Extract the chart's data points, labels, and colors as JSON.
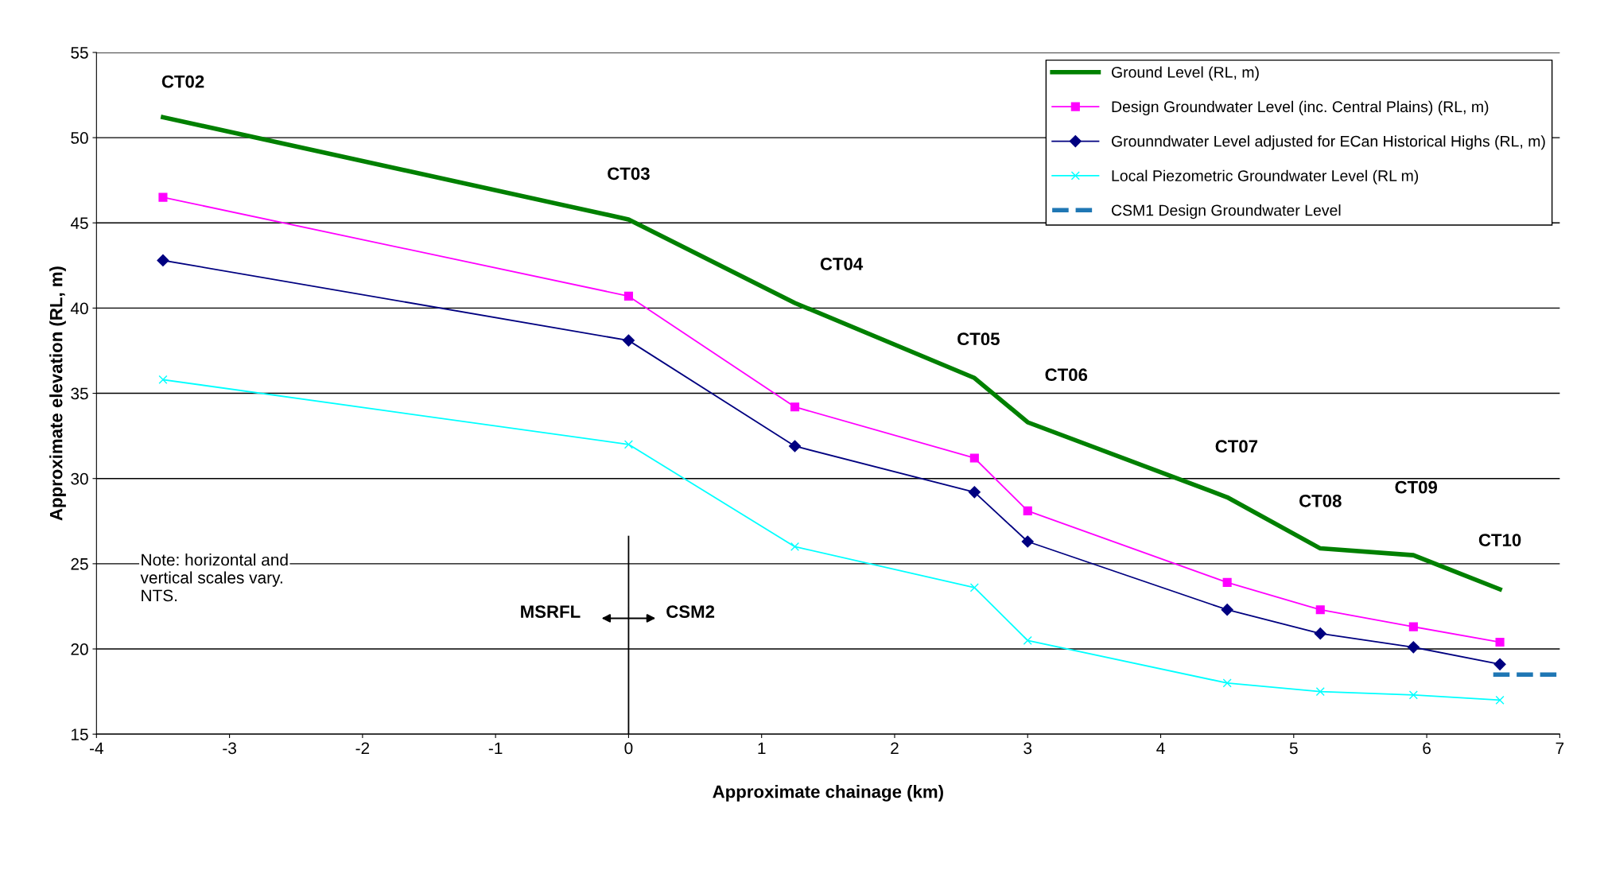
{
  "chart_data": {
    "type": "line",
    "xlabel": "Approximate chainage (km)",
    "ylabel": "Approximate elevation (RL, m)",
    "xlim": [
      -4,
      7
    ],
    "xticks": [
      -4,
      -3,
      -2,
      -1,
      0,
      1,
      2,
      3,
      4,
      5,
      6,
      7
    ],
    "ylim": [
      15,
      55
    ],
    "yticks": [
      15,
      20,
      25,
      30,
      35,
      40,
      45,
      50,
      55
    ],
    "grid": "y",
    "legend": "top right",
    "series": [
      {
        "name": "Ground Level (RL, m)",
        "color": "#008000",
        "marker": "none",
        "line_style": "solid",
        "x": [
          -3.5,
          0,
          1.25,
          2.6,
          3,
          4.5,
          5.2,
          5.9,
          6.55
        ],
        "values": [
          51.2,
          45.2,
          40.3,
          35.9,
          33.3,
          28.9,
          25.9,
          25.5,
          23.5
        ]
      },
      {
        "name": "Design Groundwater Level (inc. Central Plains) (RL, m)",
        "color": "#ff00ff",
        "marker": "square",
        "line_style": "solid",
        "x": [
          -3.5,
          0,
          1.25,
          2.6,
          3,
          4.5,
          5.2,
          5.9,
          6.55
        ],
        "values": [
          46.5,
          40.7,
          34.2,
          31.2,
          28.1,
          23.9,
          22.3,
          21.3,
          20.4
        ]
      },
      {
        "name": "Grounndwater Level adjusted for ECan Historical Highs (RL, m)",
        "color": "#000080",
        "marker": "diamond",
        "line_style": "solid",
        "x": [
          -3.5,
          0,
          1.25,
          2.6,
          3,
          4.5,
          5.2,
          5.9,
          6.55
        ],
        "values": [
          42.8,
          38.1,
          31.9,
          29.2,
          26.3,
          22.3,
          20.9,
          20.1,
          19.1
        ]
      },
      {
        "name": "Local Piezometric Groundwater Level (RL m)",
        "color": "#00ffff",
        "marker": "cross",
        "line_style": "solid",
        "x": [
          -3.5,
          0,
          1.25,
          2.6,
          3,
          4.5,
          5.2,
          5.9,
          6.55
        ],
        "values": [
          35.8,
          32.0,
          26.0,
          23.6,
          20.5,
          18.0,
          17.5,
          17.3,
          17.0
        ]
      },
      {
        "name": "CSM1 Design Groundwater Level",
        "color": "#1f77b4",
        "marker": "none",
        "line_style": "dashed",
        "x": [
          6.5,
          7
        ],
        "values": [
          18.5,
          18.5
        ]
      },
      {
        "color": "#000000",
        "marker": "none",
        "line_style": "solid",
        "x": [
          0,
          0
        ],
        "values": [
          15,
          26.6
        ]
      }
    ],
    "annotations": [
      "CT02",
      "CT03",
      "CT04",
      "CT05",
      "CT06",
      "CT07",
      "CT08",
      "CT09",
      "CT10",
      "MSRFL",
      "CSM2",
      "Note: horizontal and\nvertical scales vary.\nNTS."
    ]
  }
}
